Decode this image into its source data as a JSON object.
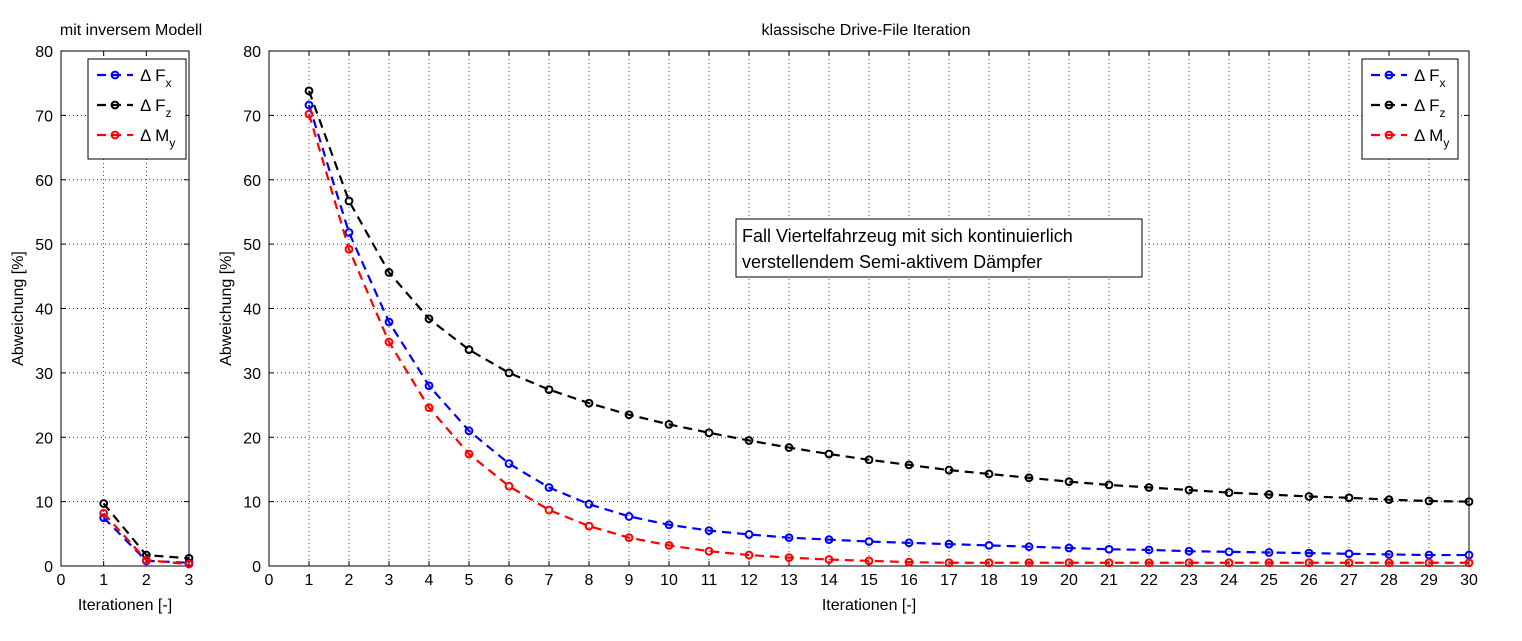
{
  "chart_data": [
    {
      "type": "line",
      "title": "mit inversem Modell",
      "xlabel": "Iterationen [-]",
      "ylabel": "Abweichung [%]",
      "xlim": [
        0,
        3
      ],
      "ylim": [
        0,
        80
      ],
      "xticks": [
        0,
        1,
        2,
        3
      ],
      "yticks": [
        0,
        10,
        20,
        30,
        40,
        50,
        60,
        70,
        80
      ],
      "grid": true,
      "legend_position": "top-right",
      "x": [
        1,
        2,
        3
      ],
      "series": [
        {
          "name": "Δ F",
          "sub": "x",
          "color": "#0000ff",
          "values": [
            7.5,
            0.8,
            0.5
          ]
        },
        {
          "name": "Δ F",
          "sub": "z",
          "color": "#000000",
          "values": [
            9.7,
            1.7,
            1.2
          ]
        },
        {
          "name": "Δ M",
          "sub": "y",
          "color": "#ff0000",
          "values": [
            8.2,
            0.9,
            0.3
          ]
        }
      ]
    },
    {
      "type": "line",
      "title": "klassische Drive-File Iteration",
      "xlabel": "Iterationen [-]",
      "ylabel": "Abweichung [%]",
      "xlim": [
        0,
        30
      ],
      "ylim": [
        0,
        80
      ],
      "xticks": [
        0,
        1,
        2,
        3,
        4,
        5,
        6,
        7,
        8,
        9,
        10,
        11,
        12,
        13,
        14,
        15,
        16,
        17,
        18,
        19,
        20,
        21,
        22,
        23,
        24,
        25,
        26,
        27,
        28,
        29,
        30
      ],
      "yticks": [
        0,
        10,
        20,
        30,
        40,
        50,
        60,
        70,
        80
      ],
      "grid": true,
      "legend_position": "top-right",
      "annotation": [
        "Fall Viertelfahrzeug mit sich kontinuierlich",
        "verstellendem Semi-aktivem Dämpfer"
      ],
      "x": [
        1,
        2,
        3,
        4,
        5,
        6,
        7,
        8,
        9,
        10,
        11,
        12,
        13,
        14,
        15,
        16,
        17,
        18,
        19,
        20,
        21,
        22,
        23,
        24,
        25,
        26,
        27,
        28,
        29,
        30
      ],
      "series": [
        {
          "name": "Δ F",
          "sub": "x",
          "color": "#0000ff",
          "values": [
            71.6,
            51.8,
            37.9,
            28.0,
            21.0,
            15.9,
            12.2,
            9.6,
            7.7,
            6.4,
            5.5,
            4.9,
            4.4,
            4.1,
            3.8,
            3.6,
            3.4,
            3.2,
            3.0,
            2.8,
            2.6,
            2.5,
            2.3,
            2.2,
            2.1,
            2.0,
            1.9,
            1.8,
            1.7,
            1.7
          ]
        },
        {
          "name": "Δ F",
          "sub": "z",
          "color": "#000000",
          "values": [
            73.8,
            56.7,
            45.6,
            38.4,
            33.6,
            30.0,
            27.4,
            25.3,
            23.5,
            22.0,
            20.7,
            19.5,
            18.4,
            17.4,
            16.5,
            15.7,
            14.9,
            14.3,
            13.7,
            13.1,
            12.6,
            12.2,
            11.8,
            11.4,
            11.1,
            10.8,
            10.6,
            10.3,
            10.1,
            10.0
          ]
        },
        {
          "name": "Δ M",
          "sub": "y",
          "color": "#ff0000",
          "values": [
            70.2,
            49.2,
            34.8,
            24.6,
            17.4,
            12.4,
            8.7,
            6.2,
            4.4,
            3.2,
            2.3,
            1.7,
            1.3,
            1.0,
            0.8,
            0.6,
            0.5,
            0.5,
            0.5,
            0.5,
            0.5,
            0.5,
            0.5,
            0.5,
            0.5,
            0.5,
            0.5,
            0.5,
            0.5,
            0.5
          ]
        }
      ]
    }
  ]
}
